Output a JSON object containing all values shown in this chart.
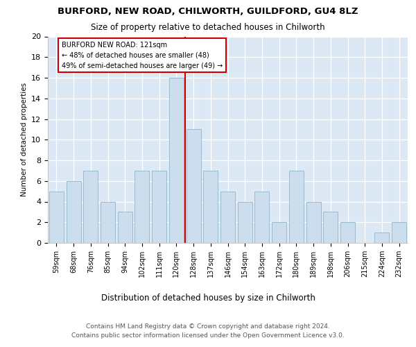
{
  "title1": "BURFORD, NEW ROAD, CHILWORTH, GUILDFORD, GU4 8LZ",
  "title2": "Size of property relative to detached houses in Chilworth",
  "xlabel": "Distribution of detached houses by size in Chilworth",
  "ylabel": "Number of detached properties",
  "categories": [
    "59sqm",
    "68sqm",
    "76sqm",
    "85sqm",
    "94sqm",
    "102sqm",
    "111sqm",
    "120sqm",
    "128sqm",
    "137sqm",
    "146sqm",
    "154sqm",
    "163sqm",
    "172sqm",
    "180sqm",
    "189sqm",
    "198sqm",
    "206sqm",
    "215sqm",
    "224sqm",
    "232sqm"
  ],
  "values": [
    5,
    6,
    7,
    4,
    3,
    7,
    7,
    16,
    11,
    7,
    5,
    4,
    5,
    2,
    7,
    4,
    3,
    2,
    0,
    1,
    2
  ],
  "bar_color": "#ccdded",
  "bar_edge_color": "#99bbcc",
  "vline_index": 7.5,
  "annotation_title": "BURFORD NEW ROAD: 121sqm",
  "annotation_line1": "← 48% of detached houses are smaller (48)",
  "annotation_line2": "49% of semi-detached houses are larger (49) →",
  "vline_color": "#cc0000",
  "ylim": [
    0,
    20
  ],
  "yticks": [
    0,
    2,
    4,
    6,
    8,
    10,
    12,
    14,
    16,
    18,
    20
  ],
  "footer1": "Contains HM Land Registry data © Crown copyright and database right 2024.",
  "footer2": "Contains public sector information licensed under the Open Government Licence v3.0.",
  "fig_bg_color": "#ffffff",
  "plot_bg_color": "#dce9f5"
}
